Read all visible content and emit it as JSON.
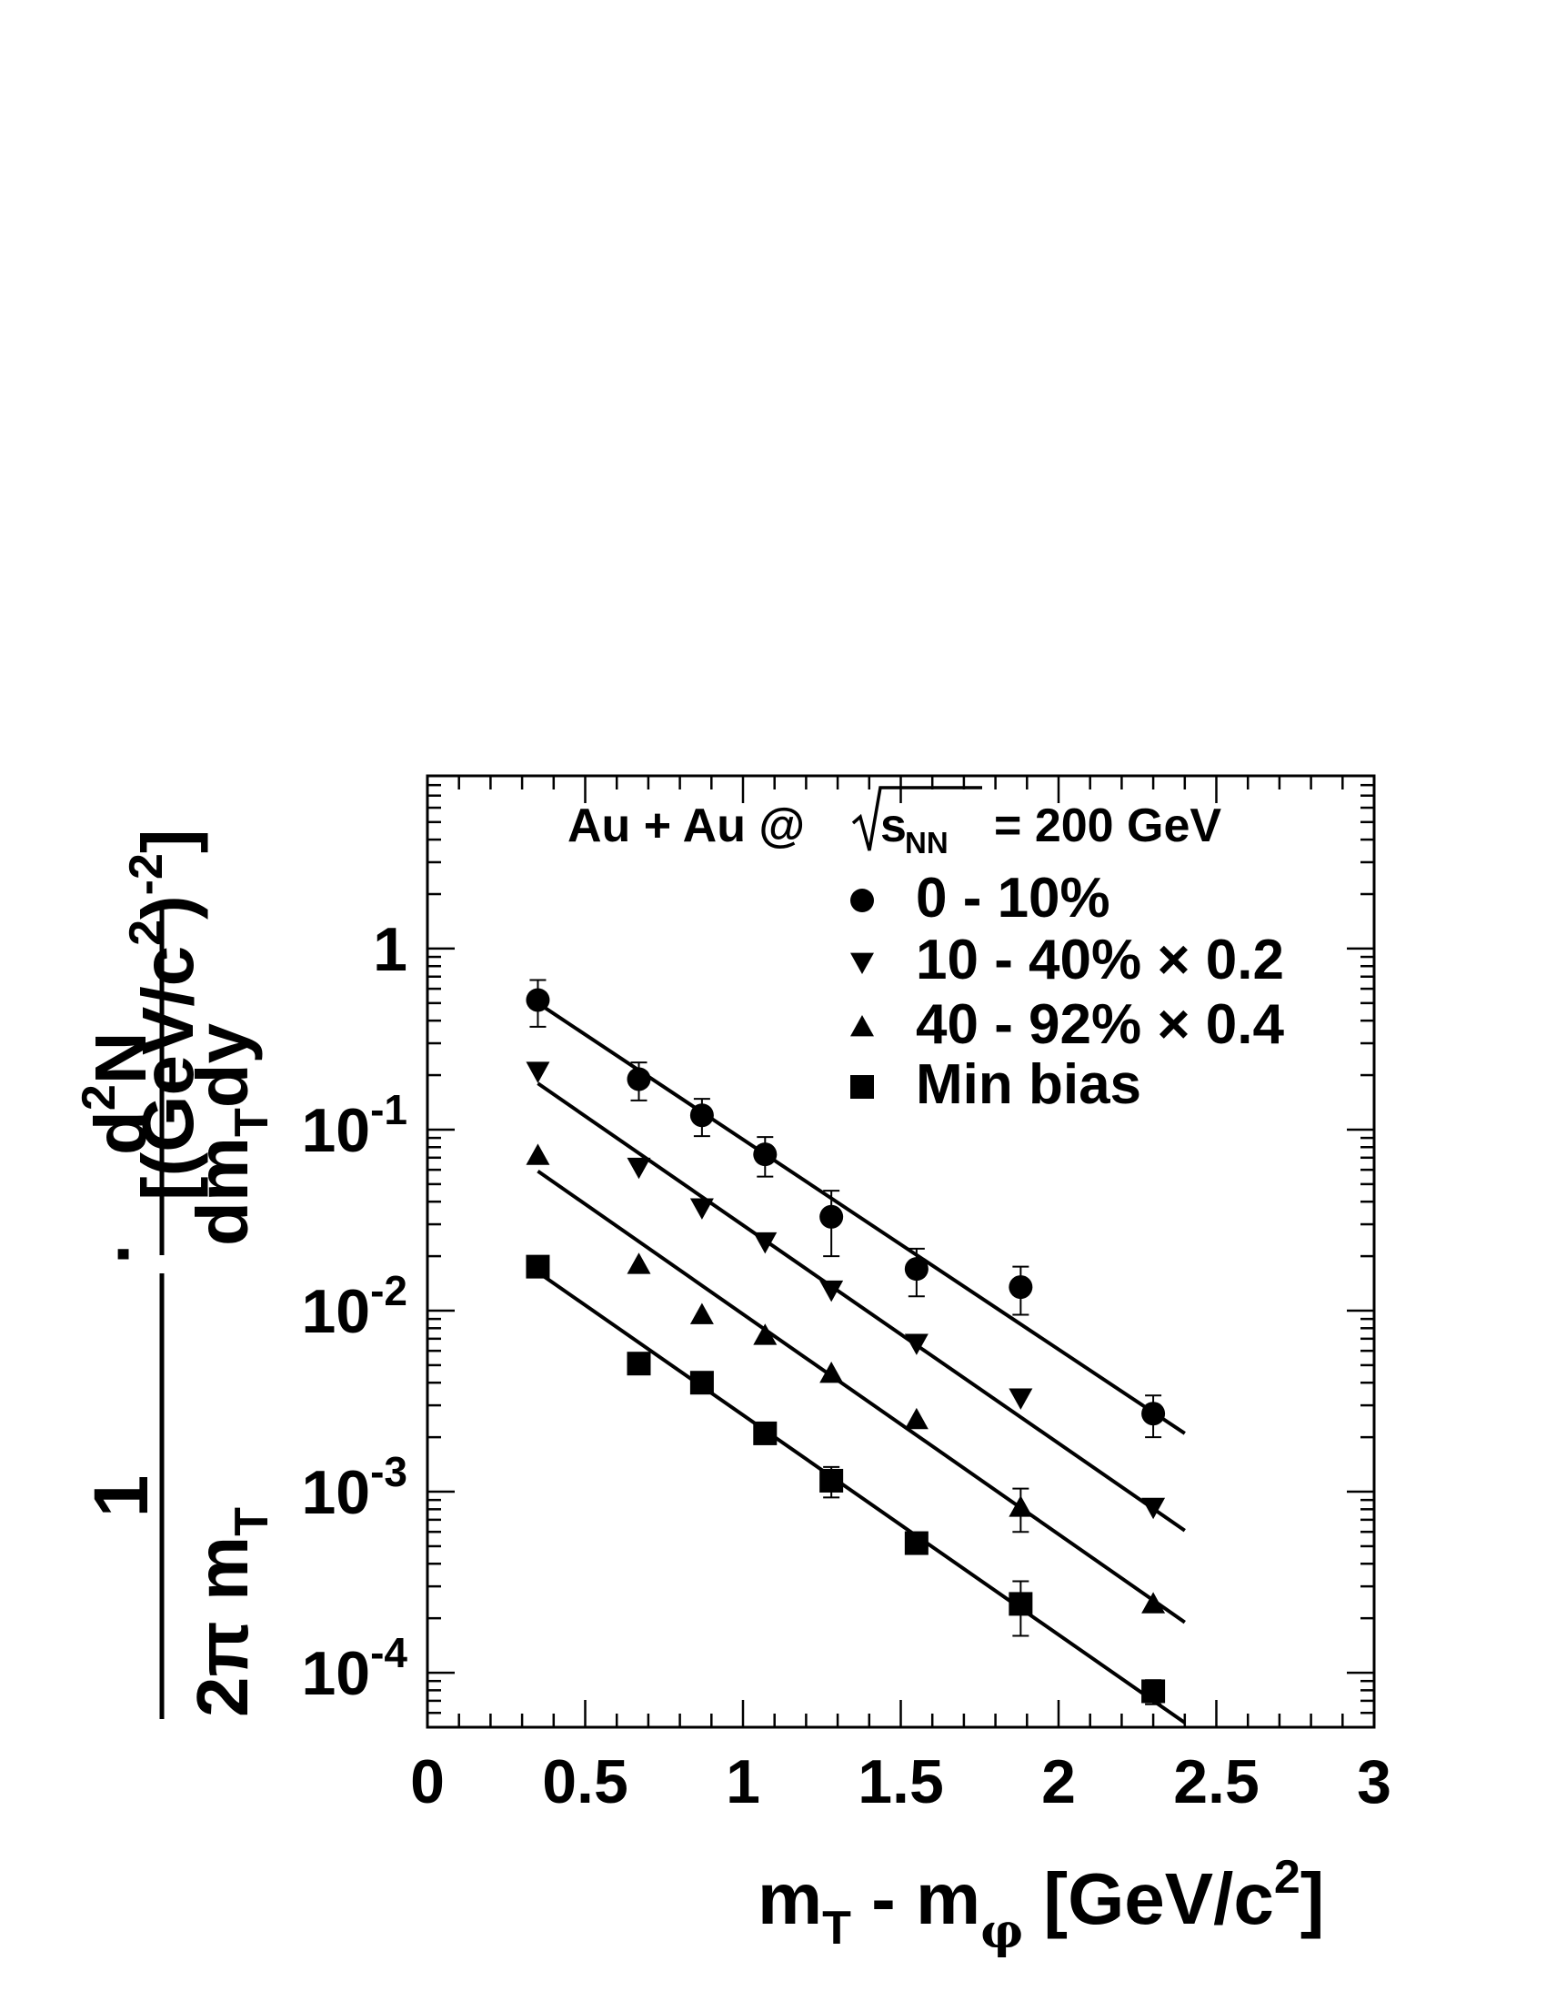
{
  "chart_data": {
    "type": "scatter",
    "title": "Au + Au @ √s_NN = 200 GeV",
    "annotation": {
      "prefix": "Au + Au @",
      "sqrt_var": "s",
      "sqrt_sub": "NN",
      "suffix": "= 200 GeV"
    },
    "xlabel": {
      "main": "m",
      "sub1": "T",
      "mid": " - m",
      "sub2": "φ",
      "tail": " [GeV/c",
      "sup": "2",
      "end": "]"
    },
    "ylabel": {
      "numerator": "1",
      "denominator": "2π m",
      "denominator_sub": "T",
      "dot": "·",
      "frac_num_main": "d",
      "frac_num_sup": "2",
      "frac_num_tail": "N",
      "frac_den_main": "dm",
      "frac_den_sub": "T",
      "frac_den_tail": "dy",
      "units_main": "[(GeV/c",
      "units_sup1": "2",
      "units_mid": ")",
      "units_sup2": "-2",
      "units_end": "]"
    },
    "xlim": [
      0,
      3
    ],
    "ylim": [
      5e-05,
      9
    ],
    "yscale": "log",
    "x_ticks": [
      {
        "value": 0,
        "label": "0"
      },
      {
        "value": 0.5,
        "label": "0.5"
      },
      {
        "value": 1,
        "label": "1"
      },
      {
        "value": 1.5,
        "label": "1.5"
      },
      {
        "value": 2,
        "label": "2"
      },
      {
        "value": 2.5,
        "label": "2.5"
      },
      {
        "value": 3,
        "label": "3"
      }
    ],
    "y_ticks": [
      {
        "value": 1,
        "base": "1",
        "exp": ""
      },
      {
        "value": 0.1,
        "base": "10",
        "exp": "-1"
      },
      {
        "value": 0.01,
        "base": "10",
        "exp": "-2"
      },
      {
        "value": 0.001,
        "base": "10",
        "exp": "-3"
      },
      {
        "value": 0.0001,
        "base": "10",
        "exp": "-4"
      }
    ],
    "legend_position": "top-right",
    "series": [
      {
        "name": "0 - 10%",
        "marker": "circle",
        "x": [
          0.35,
          0.67,
          0.87,
          1.07,
          1.28,
          1.55,
          1.88,
          2.3
        ],
        "y": [
          0.52,
          0.19,
          0.12,
          0.073,
          0.033,
          0.017,
          0.0135,
          0.0027
        ],
        "err": [
          0.15,
          0.045,
          0.028,
          0.018,
          0.013,
          0.005,
          0.004,
          0.0007
        ],
        "fit": {
          "x": [
            0.35,
            2.4
          ],
          "y": [
            0.5,
            0.0021
          ]
        }
      },
      {
        "name": "10 - 40% × 0.2",
        "marker": "triangle-down",
        "x": [
          0.35,
          0.67,
          0.87,
          1.07,
          1.28,
          1.55,
          1.88,
          2.3
        ],
        "y": [
          0.21,
          0.062,
          0.037,
          0.024,
          0.013,
          0.0066,
          0.0033,
          0.00082
        ],
        "err": [
          0,
          0,
          0,
          0,
          0,
          0,
          0,
          0
        ],
        "fit": {
          "x": [
            0.35,
            2.4
          ],
          "y": [
            0.18,
            0.00061
          ]
        }
      },
      {
        "name": "40 - 92% × 0.4",
        "marker": "triangle-up",
        "x": [
          0.35,
          0.67,
          0.87,
          1.07,
          1.28,
          1.55,
          1.88,
          2.3
        ],
        "y": [
          0.072,
          0.018,
          0.0095,
          0.0073,
          0.0045,
          0.0025,
          0.00082,
          0.00024
        ],
        "err": [
          0,
          0,
          0,
          0,
          0,
          0,
          0.00022,
          0
        ],
        "fit": {
          "x": [
            0.35,
            2.4
          ],
          "y": [
            0.059,
            0.00019
          ]
        }
      },
      {
        "name": "Min bias",
        "marker": "square",
        "x": [
          0.35,
          0.67,
          0.87,
          1.07,
          1.28,
          1.55,
          1.88,
          2.3
        ],
        "y": [
          0.0175,
          0.0051,
          0.004,
          0.0021,
          0.00115,
          0.00052,
          0.00024,
          7.9e-05
        ],
        "err": [
          0,
          0,
          0,
          0,
          0.00022,
          0,
          8e-05,
          1.2e-05
        ],
        "fit": {
          "x": [
            0.35,
            2.4
          ],
          "y": [
            0.0163,
            5.3e-05
          ]
        }
      }
    ]
  }
}
